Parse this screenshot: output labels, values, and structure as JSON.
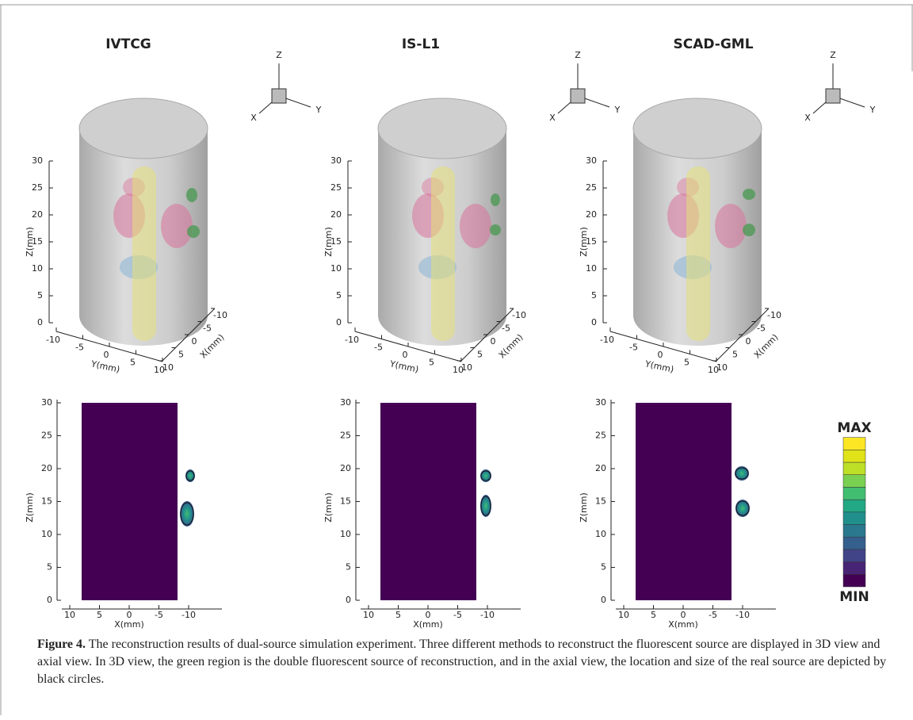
{
  "panels": [
    {
      "title": "IVTCG"
    },
    {
      "title": "IS-L1"
    },
    {
      "title": "SCAD-GML"
    }
  ],
  "triad": {
    "x": "X",
    "y": "Y",
    "z": "Z"
  },
  "view3d": {
    "z_label": "Z(mm)",
    "y_label": "Y(mm)",
    "x_label": "X(mm)",
    "z_ticks": [
      0,
      5,
      10,
      15,
      20,
      25,
      30
    ],
    "y_ticks": [
      -10,
      -5,
      0,
      5,
      10
    ],
    "x_ticks": [
      10,
      5,
      0,
      -5,
      -10
    ]
  },
  "axial": {
    "y_label": "Z(mm)",
    "x_label": "X(mm)",
    "y_ticks": [
      0,
      5,
      10,
      15,
      20,
      25,
      30
    ],
    "x_ticks": [
      10,
      5,
      0,
      -5,
      -10
    ]
  },
  "colorbar": {
    "max": "MAX",
    "min": "MIN"
  },
  "caption": {
    "label": "Figure 4.",
    "text": "The reconstruction results of dual-source simulation experiment. Three different methods to reconstruct the fluorescent source are displayed in 3D view and axial view. In 3D view, the green region is the double fluorescent source of reconstruction, and in the axial view, the location and size of the real source are depicted by black circles."
  }
}
